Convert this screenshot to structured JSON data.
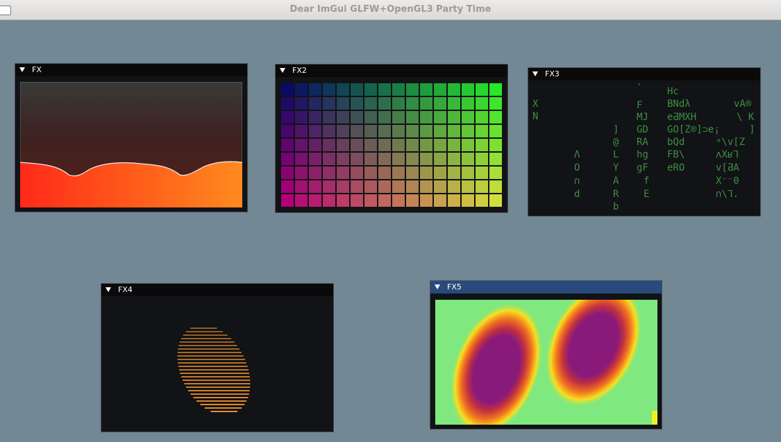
{
  "window": {
    "title": "Dear ImGui GLFW+OpenGL3 Party Time"
  },
  "panels": [
    {
      "id": "fx1",
      "label": "FX"
    },
    {
      "id": "fx2",
      "label": "FX2"
    },
    {
      "id": "fx3",
      "label": "FX3"
    },
    {
      "id": "fx4",
      "label": "FX4"
    },
    {
      "id": "fx5",
      "label": "FX5"
    }
  ],
  "fx3_glyphs": [
    "X",
    "N",
    "`",
    "F",
    "MJ",
    "GD",
    "RA",
    "hg",
    "gF",
    "f",
    "E",
    "]",
    "@",
    "L",
    "Y",
    "A",
    "R",
    "b",
    "Λ",
    "Ο",
    "∩",
    "d",
    "Hc",
    "BNdλ",
    "eƋMXH",
    "GO[Z®]⊃e¡",
    "bQd",
    "FB\\",
    "eRO",
    "vA®",
    "\\ K",
    "]",
    "ᵊ\\v[Z",
    "ʌXʁ⅂",
    "v[ƋA",
    "X⁻⁻0",
    "∩\\⅂."
  ],
  "colors": {
    "desktop": "#728894",
    "panel_bg": "#111316",
    "header": "#0a0a0a",
    "header_active": "#294a7a",
    "matrix_green": "#3f8f3f",
    "fx4_orange": "#f0902a",
    "fx5_bg": "#7fe87f",
    "fx5_core": "#8a1a7a"
  }
}
